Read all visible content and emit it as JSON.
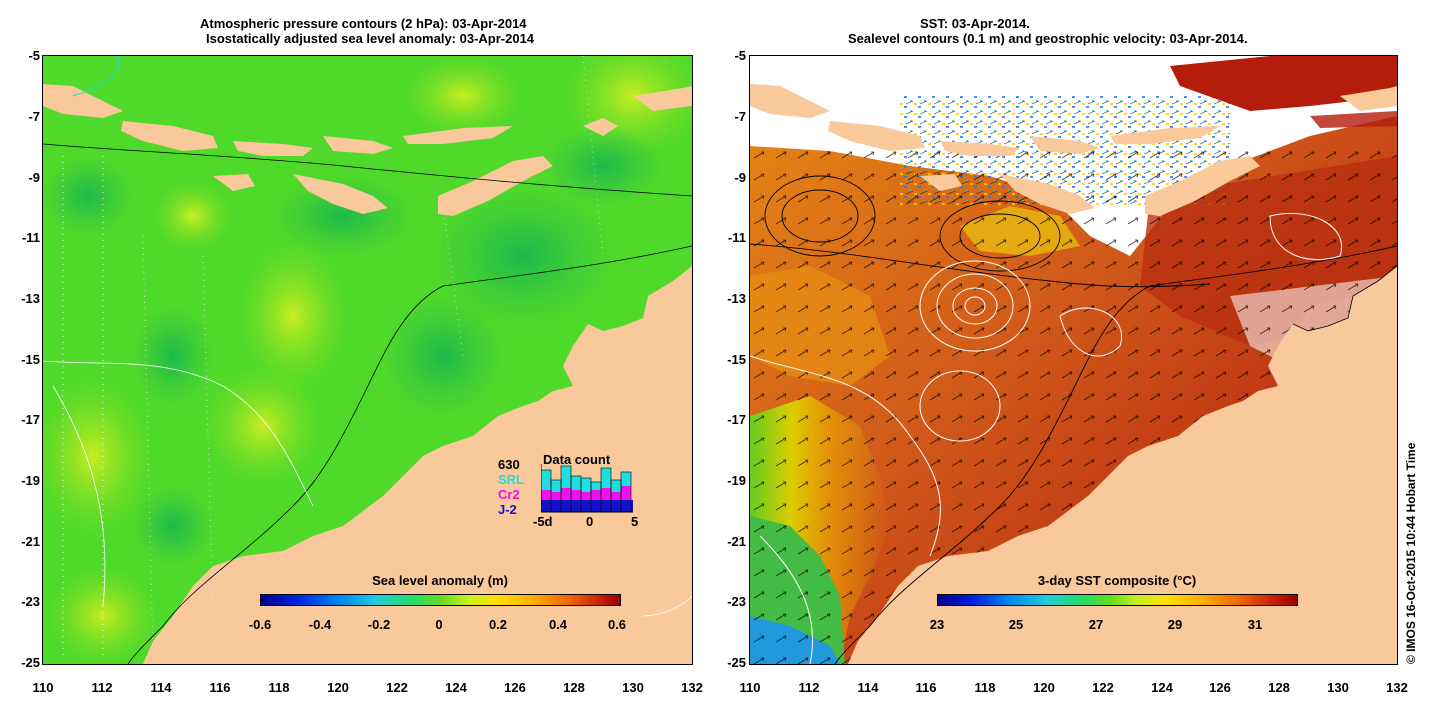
{
  "left": {
    "title_line1": "Atmospheric pressure contours (2 hPa): 03-Apr-2014",
    "title_line2": "Isostatically adjusted sea level anomaly: 03-Apr-2014",
    "y_ticks": [
      "-5",
      "-7",
      "-9",
      "-11",
      "-13",
      "-15",
      "-17",
      "-19",
      "-21",
      "-23",
      "-25"
    ],
    "x_ticks": [
      "110",
      "112",
      "114",
      "116",
      "118",
      "120",
      "122",
      "124",
      "126",
      "128",
      "130",
      "132"
    ],
    "colorbar": {
      "title": "Sea level anomaly (m)",
      "ticks": [
        "-0.6",
        "-0.4",
        "-0.2",
        "0",
        "0.2",
        "0.4",
        "0.6"
      ],
      "range": [
        -0.6,
        0.6
      ]
    },
    "data_count": {
      "title": "Data count",
      "total": "630",
      "missions": [
        {
          "name": "SRL",
          "color": "#22dddd"
        },
        {
          "name": "Cr2",
          "color": "#ee11ee"
        },
        {
          "name": "J-2",
          "color": "#1111cc"
        }
      ],
      "axis_labels": [
        "-5d",
        "0",
        "5"
      ]
    }
  },
  "right": {
    "title_line1": "SST: 03-Apr-2014.",
    "title_line2": "Sealevel contours (0.1 m) and geostrophic velocity: 03-Apr-2014.",
    "y_ticks": [
      "-5",
      "-7",
      "-9",
      "-11",
      "-13",
      "-15",
      "-17",
      "-19",
      "-21",
      "-23",
      "-25"
    ],
    "x_ticks": [
      "110",
      "112",
      "114",
      "116",
      "118",
      "120",
      "122",
      "124",
      "126",
      "128",
      "130",
      "132"
    ],
    "colorbar": {
      "title": "3-day SST composite (°C)",
      "ticks": [
        "23",
        "25",
        "27",
        "29",
        "31"
      ],
      "range": [
        23,
        32
      ]
    }
  },
  "credit": "© IMOS 16-Oct-2015 10:44 Hobart Time",
  "colors": {
    "land": "#f9c89b",
    "ocean_sla": "#44dd22",
    "ocean_sst": "#d0581a",
    "ocean_sst_hot": "#b41c0c"
  }
}
